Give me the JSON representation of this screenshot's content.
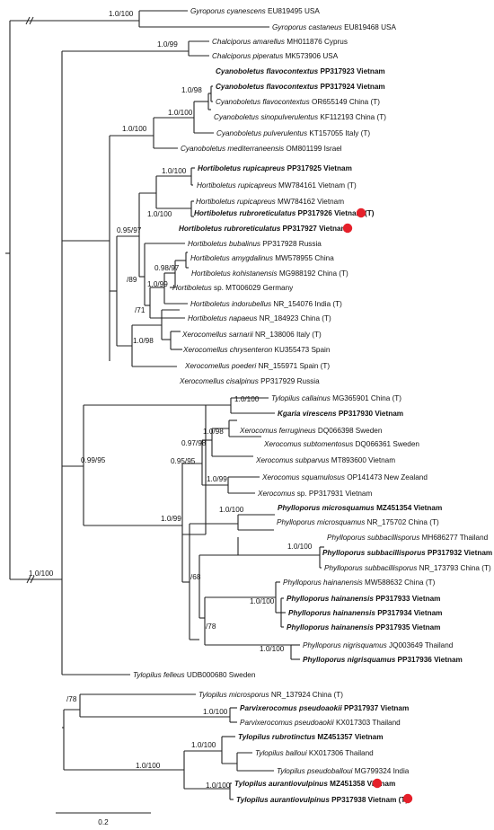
{
  "colors": {
    "line": "#222222",
    "marker": "#e5202a",
    "text": "#111111"
  },
  "scale_bar": {
    "label": "0.2"
  },
  "taxa": [
    {
      "id": "gcy",
      "genus": "Gyroporus cyanescens",
      "rest": "EU819495 USA",
      "bold": false
    },
    {
      "id": "gca",
      "genus": "Gyroporus castaneus",
      "rest": "EU819468 USA",
      "bold": false
    },
    {
      "id": "cam",
      "genus": "Chalciporus amarellus",
      "rest": "MH011876 Cyprus",
      "bold": false
    },
    {
      "id": "cpi",
      "genus": "Chalciporus piperatus",
      "rest": "MK573906 USA",
      "bold": false
    },
    {
      "id": "cfl1",
      "genus": "Cyanoboletus flavocontextus",
      "rest": "PP317923 Vietnam",
      "bold": true
    },
    {
      "id": "cfl2",
      "genus": "Cyanoboletus flavocontextus",
      "rest": "PP317924 Vietnam",
      "bold": true
    },
    {
      "id": "cfl3",
      "genus": "Cyanoboletus flavocontextus",
      "rest": "OR655149 China (T)",
      "bold": false
    },
    {
      "id": "csi",
      "genus": "Cyanoboletus sinopulverulentus",
      "rest": "KF112193 China (T)",
      "bold": false
    },
    {
      "id": "cpu",
      "genus": "Cyanoboletus pulverulentus",
      "rest": "KT157055 Italy (T)",
      "bold": false
    },
    {
      "id": "cme",
      "genus": "Cyanoboletus mediterraneensis",
      "rest": "OM801199 Israel",
      "bold": false
    },
    {
      "id": "hru1",
      "genus": "Hortiboletus rupicapreus",
      "rest": "PP317925 Vietnam",
      "bold": true
    },
    {
      "id": "hru2",
      "genus": "Hortiboletus rupicapreus",
      "rest": "MW784161 Vietnam (T)",
      "bold": false
    },
    {
      "id": "hru3",
      "genus": "Hortiboletus rupicapreus",
      "rest": "MW784162 Vietnam",
      "bold": false
    },
    {
      "id": "hrr1",
      "genus": "Hortiboletus rubroreticulatus",
      "rest": "PP317926 Vietnam (T)",
      "bold": true
    },
    {
      "id": "hrr2",
      "genus": "Hortiboletus rubroreticulatus",
      "rest": "PP317927 Vietnam",
      "bold": true
    },
    {
      "id": "hbu",
      "genus": "Hortiboletus bubalinus",
      "rest": "PP317928 Russia",
      "bold": false
    },
    {
      "id": "ham",
      "genus": "Hortiboletus amygdalinus",
      "rest": "MW578955 China",
      "bold": false
    },
    {
      "id": "hko",
      "genus": "Hortiboletus kohistanensis",
      "rest": "MG988192 China (T)",
      "bold": false
    },
    {
      "id": "hsp",
      "genus": "Hortiboletus",
      "rest": "sp. MT006029 Germany",
      "bold": false
    },
    {
      "id": "hin",
      "genus": "Hortiboletus indorubellus",
      "rest": "NR_154076 India (T)",
      "bold": false
    },
    {
      "id": "hna",
      "genus": "Hortiboletus napaeus",
      "rest": "NR_184923 China (T)",
      "bold": false
    },
    {
      "id": "xsa",
      "genus": "Xerocomellus sarnarii",
      "rest": "NR_138006 Italy (T)",
      "bold": false
    },
    {
      "id": "xch",
      "genus": "Xerocomellus chrysenteron",
      "rest": "KU355473 Spain",
      "bold": false
    },
    {
      "id": "xpo",
      "genus": "Xerocomellus poederi",
      "rest": "NR_155971 Spain (T)",
      "bold": false
    },
    {
      "id": "xci",
      "genus": "Xerocomellus cisalpinus",
      "rest": "PP317929 Russia",
      "bold": false
    },
    {
      "id": "tca",
      "genus": "Tylopilus callainus",
      "rest": "MG365901 China (T)",
      "bold": false
    },
    {
      "id": "kvi",
      "genus": "Kgaria virescens",
      "rest": "PP317930 Vietnam",
      "bold": true
    },
    {
      "id": "xfe",
      "genus": "Xerocomus ferrugineus",
      "rest": "DQ066398 Sweden",
      "bold": false
    },
    {
      "id": "xst",
      "genus": "Xerocomus subtomentosus",
      "rest": "DQ066361 Sweden",
      "bold": false
    },
    {
      "id": "xsu",
      "genus": "Xerocomus subparvus",
      "rest": "MT893600 Vietnam",
      "bold": false
    },
    {
      "id": "xsq",
      "genus": "Xerocomus squamulosus",
      "rest": "OP141473 New Zealand",
      "bold": false
    },
    {
      "id": "xsp",
      "genus": "Xerocomus",
      "rest": "sp. PP317931 Vietnam",
      "bold": false
    },
    {
      "id": "pmi1",
      "genus": "Phylloporus microsquamus",
      "rest": "MZ451354 Vietnam",
      "bold": true
    },
    {
      "id": "pmi2",
      "genus": "Phylloporus microsquamus",
      "rest": "NR_175702 China (T)",
      "bold": false
    },
    {
      "id": "psb1",
      "genus": "Phylloporus subbacillisporus",
      "rest": "MH686277 Thailand",
      "bold": false
    },
    {
      "id": "psb2",
      "genus": "Phylloporus subbacillisporus",
      "rest": "PP317932 Vietnam",
      "bold": true
    },
    {
      "id": "psb3",
      "genus": "Phylloporus subbacillisporus",
      "rest": "NR_173793 China (T)",
      "bold": false
    },
    {
      "id": "pha1",
      "genus": "Phylloporus hainanensis",
      "rest": "MW588632 China (T)",
      "bold": false
    },
    {
      "id": "pha2",
      "genus": "Phylloporus hainanensis",
      "rest": "PP317933 Vietnam",
      "bold": true
    },
    {
      "id": "pha3",
      "genus": "Phylloporus hainanensis",
      "rest": "PP317934 Vietnam",
      "bold": true
    },
    {
      "id": "pha4",
      "genus": "Phylloporus hainanensis",
      "rest": "PP317935 Vietnam",
      "bold": true
    },
    {
      "id": "pni1",
      "genus": "Phylloporus nigrisquamus",
      "rest": "JQ003649 Thailand",
      "bold": false
    },
    {
      "id": "pni2",
      "genus": "Phylloporus nigrisquamus",
      "rest": "PP317936 Vietnam",
      "bold": true
    },
    {
      "id": "tfe",
      "genus": "Tylopilus felleus",
      "rest": "UDB000680 Sweden",
      "bold": false
    },
    {
      "id": "tmi",
      "genus": "Tylopilus microsporus",
      "rest": "NR_137924 China (T)",
      "bold": false
    },
    {
      "id": "pps1",
      "genus": "Parvixerocomus pseudoaokii",
      "rest": "PP317937 Vietnam",
      "bold": true
    },
    {
      "id": "pps2",
      "genus": "Parvixerocomus pseudoaokii",
      "rest": "KX017303 Thailand",
      "bold": false
    },
    {
      "id": "tru",
      "genus": "Tylopilus rubrotinctus",
      "rest": "MZ451357 Vietnam",
      "bold": true
    },
    {
      "id": "tba",
      "genus": "Tylopilus balloui",
      "rest": "KX017306 Thailand",
      "bold": false
    },
    {
      "id": "tps",
      "genus": "Tylopilus pseudoballoui",
      "rest": "MG799324 India",
      "bold": false
    },
    {
      "id": "tau1",
      "genus": "Tylopilus aurantiovulpinus",
      "rest": "MZ451358 Vietnam",
      "bold": true
    },
    {
      "id": "tau2",
      "genus": "Tylopilus aurantiovulpinus",
      "rest": "PP317938 Vietnam (T)",
      "bold": true
    }
  ],
  "supports": [
    {
      "id": "s_gyro",
      "label": "1.0/100"
    },
    {
      "id": "s_chal",
      "label": "1.0/99"
    },
    {
      "id": "s_cy1",
      "label": "1.0/98"
    },
    {
      "id": "s_cy2",
      "label": "1.0/100"
    },
    {
      "id": "s_cy3",
      "label": "1.0/100"
    },
    {
      "id": "s_hru",
      "label": "1.0/100"
    },
    {
      "id": "s_hrr",
      "label": "1.0/100"
    },
    {
      "id": "s_hort",
      "label": "0.95/97"
    },
    {
      "id": "s_h89",
      "label": "/89"
    },
    {
      "id": "s_h98",
      "label": "0.98/97"
    },
    {
      "id": "s_h99",
      "label": "1.0/99"
    },
    {
      "id": "s_h71",
      "label": "/71"
    },
    {
      "id": "s_xc",
      "label": "1.0/98"
    },
    {
      "id": "s_tk",
      "label": "1.0/100"
    },
    {
      "id": "s_b2",
      "label": "0.99/95"
    },
    {
      "id": "s_xf",
      "label": "1.0/98"
    },
    {
      "id": "s_x97",
      "label": "0.97/98"
    },
    {
      "id": "s_x95",
      "label": "0.95/95"
    },
    {
      "id": "s_xs",
      "label": "1.0/99"
    },
    {
      "id": "s_xp",
      "label": "1.0/99"
    },
    {
      "id": "s_pm",
      "label": "1.0/100"
    },
    {
      "id": "s_ps",
      "label": "1.0/100"
    },
    {
      "id": "s_p68",
      "label": "/68"
    },
    {
      "id": "s_ph",
      "label": "1.0/100"
    },
    {
      "id": "s_p78",
      "label": "/78"
    },
    {
      "id": "s_pn",
      "label": "1.0/100"
    },
    {
      "id": "s_root",
      "label": "1.0/100"
    },
    {
      "id": "s_t78",
      "label": "/78"
    },
    {
      "id": "s_pp",
      "label": "1.0/100"
    },
    {
      "id": "s_tr",
      "label": "1.0/100"
    },
    {
      "id": "s_ta",
      "label": "1.0/100"
    },
    {
      "id": "s_tb",
      "label": "1.0/100"
    }
  ]
}
